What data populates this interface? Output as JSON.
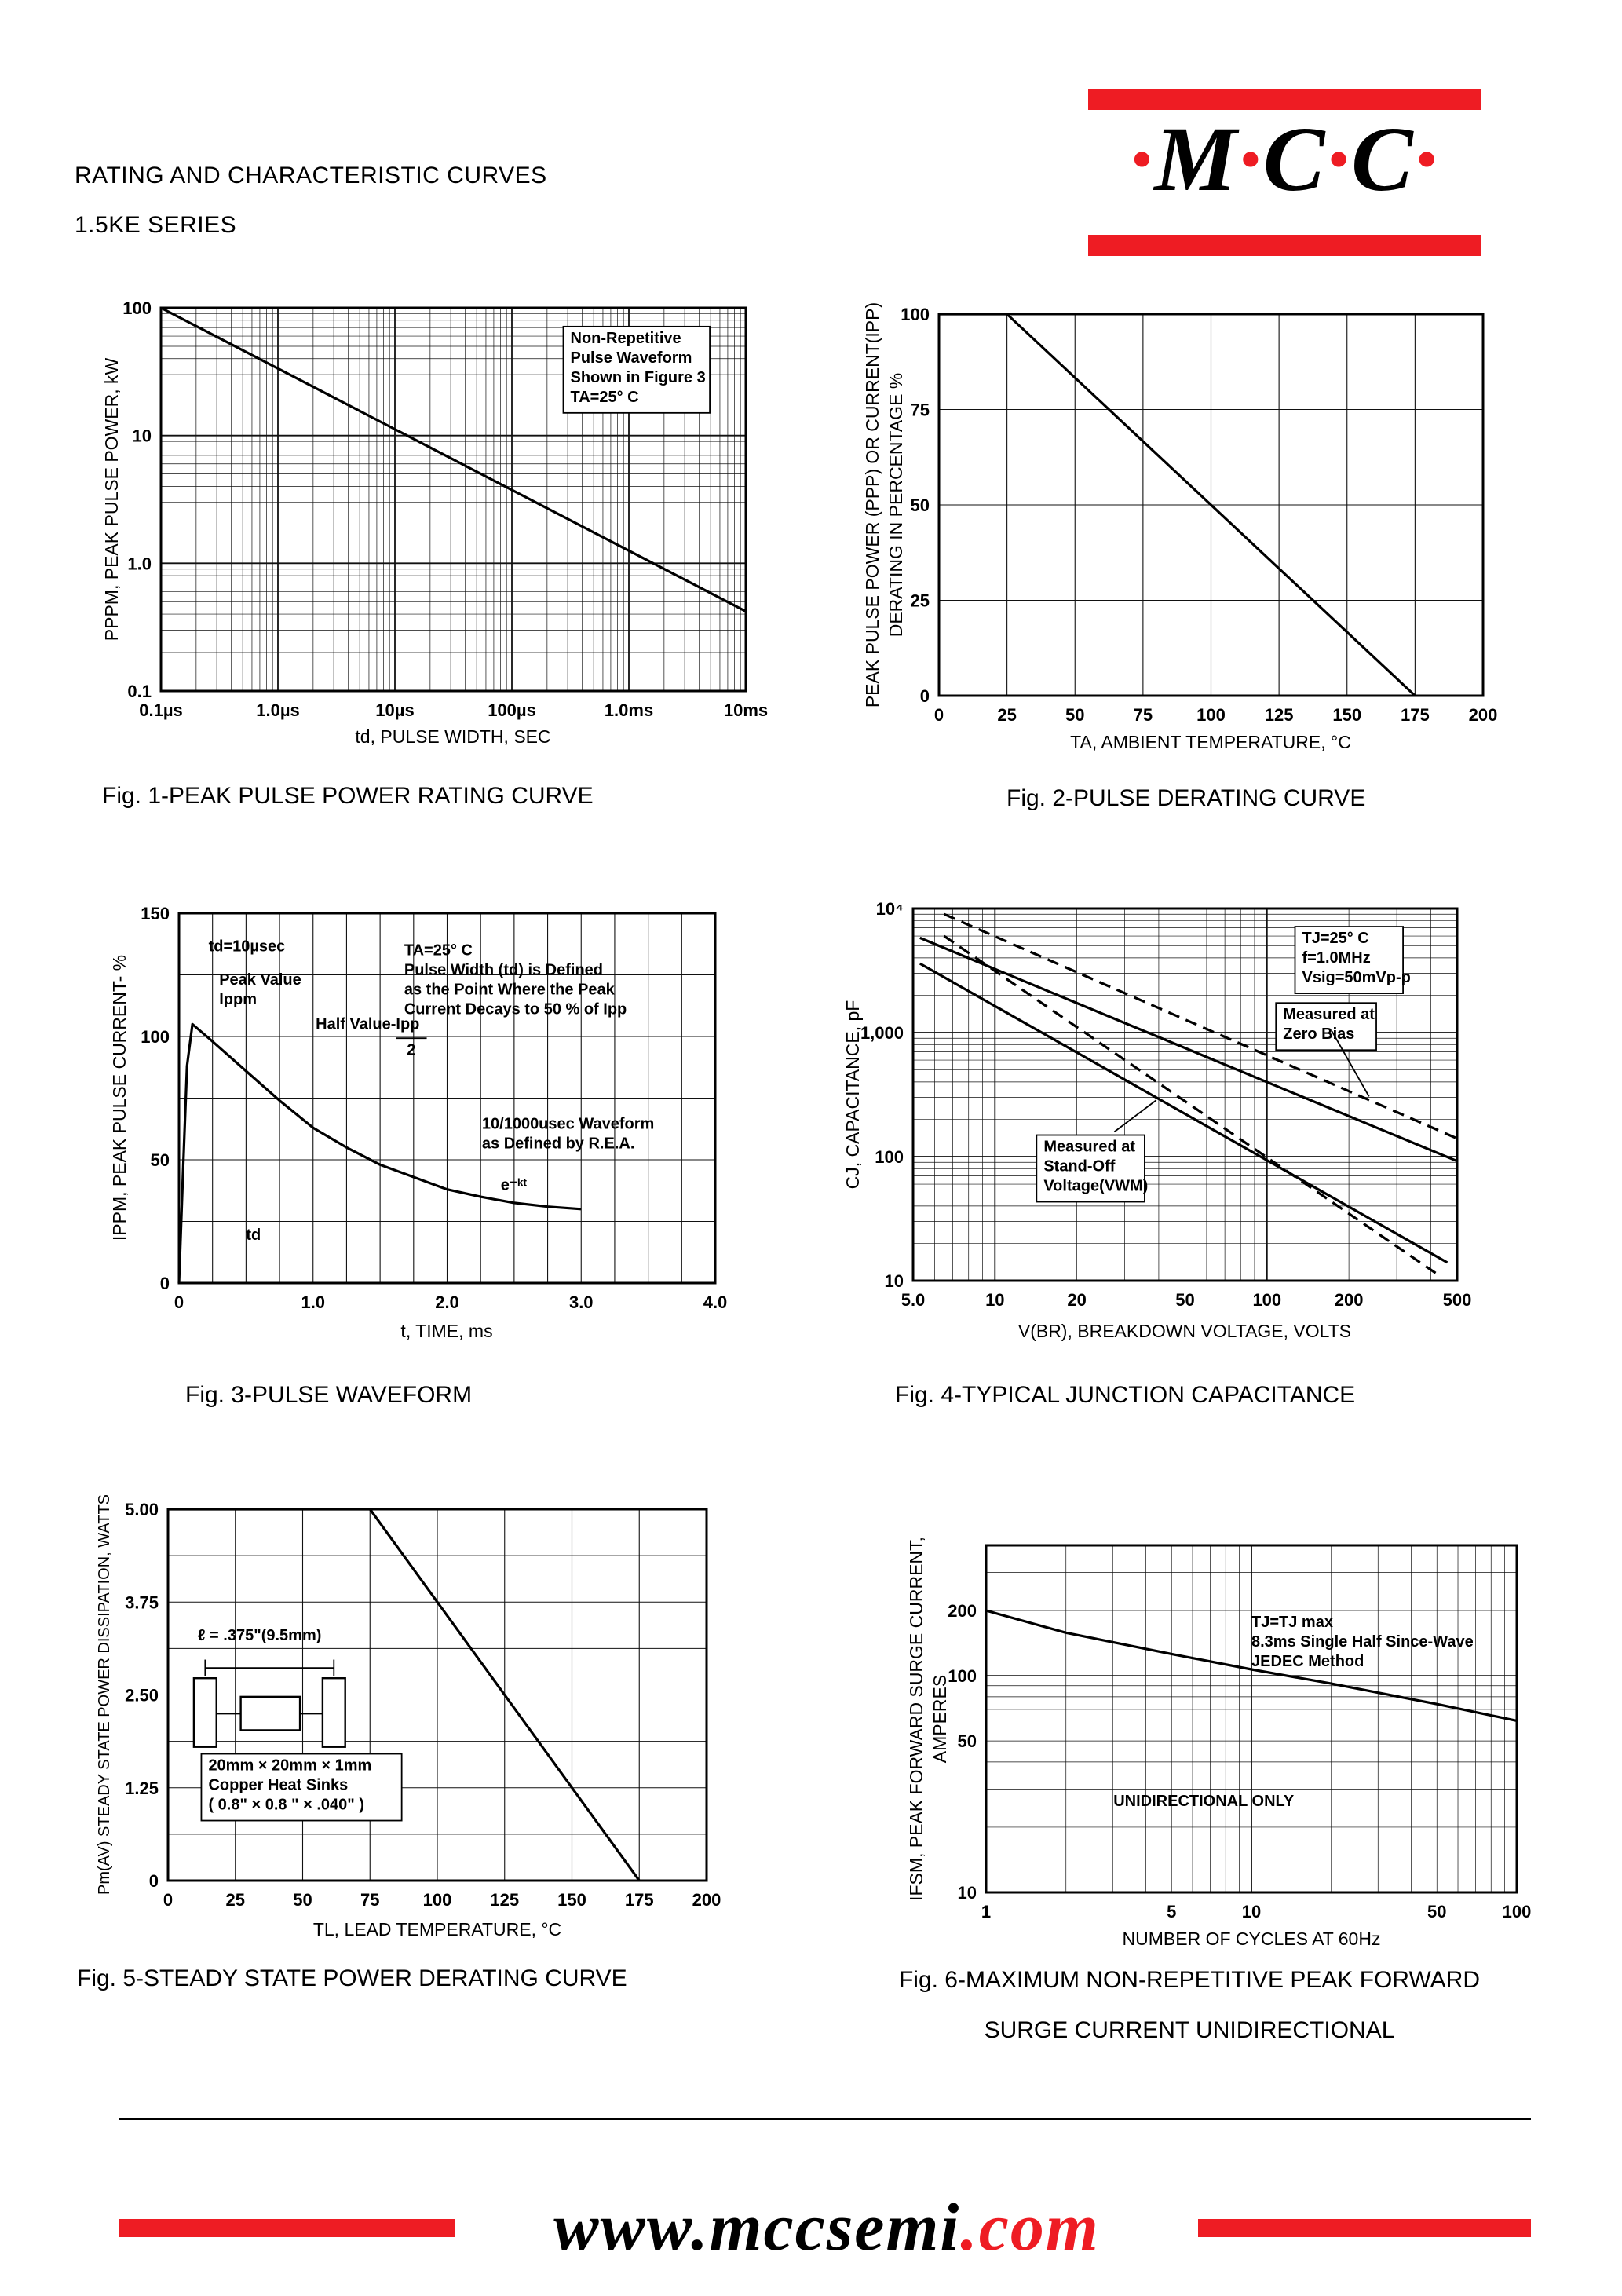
{
  "header": {
    "line1": "RATING AND CHARACTERISTIC CURVES",
    "line2": "1.5KE SERIES"
  },
  "logo": {
    "segments": [
      "·",
      "M",
      "·",
      "C",
      "·",
      "C",
      "·"
    ]
  },
  "footer": {
    "www": "www.",
    "domain": "mccsemi",
    "tld": ".com"
  },
  "colors": {
    "brand_red": "#ee1c23",
    "ink": "#000000"
  },
  "chart_data": [
    {
      "caption": "Fig. 1-PEAK PULSE POWER RATING CURVE",
      "type": "line",
      "x": {
        "scale": "log",
        "min": 1e-07,
        "max": 0.01,
        "label": "td, PULSE WIDTH, SEC",
        "ticks": [
          {
            "v": 1e-07,
            "t": "0.1µs"
          },
          {
            "v": 1e-06,
            "t": "1.0µs"
          },
          {
            "v": 1e-05,
            "t": "10µs"
          },
          {
            "v": 0.0001,
            "t": "100µs"
          },
          {
            "v": 0.001,
            "t": "1.0ms"
          },
          {
            "v": 0.01,
            "t": "10ms"
          }
        ]
      },
      "y": {
        "scale": "log",
        "min": 0.1,
        "max": 100,
        "label": "PPPM, PEAK PULSE POWER, kW",
        "ticks": [
          {
            "v": 100,
            "t": "100"
          },
          {
            "v": 10,
            "t": "10"
          },
          {
            "v": 1,
            "t": "1.0"
          },
          {
            "v": 0.1,
            "t": "0.1"
          }
        ]
      },
      "series": [
        {
          "name": "peak-pulse-power-rating",
          "points": [
            [
              1e-07,
              100
            ],
            [
              0.01,
              0.42
            ]
          ]
        }
      ],
      "annotations": [
        {
          "fx": 0.7,
          "fy": 0.055,
          "box": true,
          "lines": [
            "Non-Repetitive",
            "Pulse Waveform",
            "Shown in Figure 3",
            "TA=25° C"
          ]
        }
      ]
    },
    {
      "caption": "Fig. 2-PULSE DERATING CURVE",
      "type": "line",
      "x": {
        "scale": "linear",
        "min": 0,
        "max": 200,
        "step": 25,
        "label": "TA, AMBIENT TEMPERATURE, °C",
        "ticks": [
          {
            "v": 0,
            "t": "0"
          },
          {
            "v": 25,
            "t": "25"
          },
          {
            "v": 50,
            "t": "50"
          },
          {
            "v": 75,
            "t": "75"
          },
          {
            "v": 100,
            "t": "100"
          },
          {
            "v": 125,
            "t": "125"
          },
          {
            "v": 150,
            "t": "150"
          },
          {
            "v": 175,
            "t": "175"
          },
          {
            "v": 200,
            "t": "200"
          }
        ]
      },
      "y": {
        "scale": "linear",
        "min": 0,
        "max": 100,
        "step": 25,
        "label": "PEAK PULSE POWER (PPP) OR CURRENT(IPP)",
        "label2": "DERATING IN PERCENTAGE %",
        "ticks": [
          {
            "v": 100,
            "t": "100"
          },
          {
            "v": 75,
            "t": "75"
          },
          {
            "v": 50,
            "t": "50"
          },
          {
            "v": 25,
            "t": "25"
          },
          {
            "v": 0,
            "t": "0"
          }
        ]
      },
      "series": [
        {
          "name": "pulse-derating",
          "points": [
            [
              0,
              100
            ],
            [
              25,
              100
            ],
            [
              175,
              0
            ]
          ]
        }
      ],
      "annotations": []
    },
    {
      "caption": "Fig. 3-PULSE WAVEFORM",
      "type": "line",
      "x": {
        "scale": "linear",
        "min": 0,
        "max": 4,
        "step": 0.25,
        "label": "t, TIME, ms",
        "ticks": [
          {
            "v": 0,
            "t": "0"
          },
          {
            "v": 1,
            "t": "1.0"
          },
          {
            "v": 2,
            "t": "2.0"
          },
          {
            "v": 3,
            "t": "3.0"
          },
          {
            "v": 4,
            "t": "4.0"
          }
        ]
      },
      "y": {
        "scale": "linear",
        "min": 0,
        "max": 150,
        "step": 25,
        "label": "IPPM, PEAK PULSE CURRENT- %",
        "ticks": [
          {
            "v": 150,
            "t": "150"
          },
          {
            "v": 100,
            "t": "100"
          },
          {
            "v": 50,
            "t": "50"
          },
          {
            "v": 0,
            "t": "0"
          }
        ]
      },
      "series": [
        {
          "name": "pulse-waveform",
          "points": [
            [
              0,
              0
            ],
            [
              0.03,
              45
            ],
            [
              0.06,
              88
            ],
            [
              0.1,
              105
            ],
            [
              0.25,
              98
            ],
            [
              0.5,
              86
            ],
            [
              0.75,
              74
            ],
            [
              1,
              63
            ],
            [
              1.25,
              55
            ],
            [
              1.5,
              48
            ],
            [
              1.75,
              43
            ],
            [
              2,
              38
            ],
            [
              2.25,
              35
            ],
            [
              2.5,
              32.5
            ],
            [
              2.75,
              31
            ],
            [
              3,
              30
            ]
          ]
        }
      ],
      "annotations": [
        {
          "fx": 0.055,
          "fy": 0.065,
          "lines": [
            "td=10µsec"
          ]
        },
        {
          "fx": 0.075,
          "fy": 0.155,
          "lines": [
            "Peak Value",
            "Ippm"
          ]
        },
        {
          "fx": 0.255,
          "fy": 0.275,
          "lines": [
            "Half Value-Ipp"
          ],
          "arrow": [
            0.405,
            0.338,
            0.462,
            0.338
          ]
        },
        {
          "fx": 0.425,
          "fy": 0.345,
          "lines": [
            "2"
          ]
        },
        {
          "fx": 0.42,
          "fy": 0.075,
          "lines": [
            "TA=25° C",
            "Pulse Width (td) is Defined",
            "as the Point Where the Peak",
            "Current Decays to 50 % of Ipp"
          ]
        },
        {
          "fx": 0.565,
          "fy": 0.545,
          "lines": [
            "10/1000usec Waveform",
            "as Defined by R.E.A."
          ]
        },
        {
          "fx": 0.6,
          "fy": 0.71,
          "lines": [
            "e⁻ᵏᵗ"
          ]
        },
        {
          "fx": 0.125,
          "fy": 0.845,
          "lines": [
            "td"
          ]
        }
      ]
    },
    {
      "caption": "Fig. 4-TYPICAL JUNCTION CAPACITANCE",
      "type": "line",
      "x": {
        "scale": "log",
        "min": 5,
        "max": 500,
        "label": "V(BR), BREAKDOWN VOLTAGE, VOLTS",
        "ticks": [
          {
            "v": 5,
            "t": "5.0"
          },
          {
            "v": 10,
            "t": "10"
          },
          {
            "v": 20,
            "t": "20"
          },
          {
            "v": 50,
            "t": "50"
          },
          {
            "v": 100,
            "t": "100"
          },
          {
            "v": 200,
            "t": "200"
          },
          {
            "v": 500,
            "t": "500"
          }
        ]
      },
      "y": {
        "scale": "log",
        "min": 10,
        "max": 10000,
        "label": "CJ, CAPACITANCE, pF",
        "ticks": [
          {
            "v": 10000,
            "t": "10⁴"
          },
          {
            "v": 1000,
            "t": "1,000"
          },
          {
            "v": 100,
            "t": "100"
          },
          {
            "v": 10,
            "t": "10"
          }
        ]
      },
      "series": [
        {
          "name": "zero-bias-dashed",
          "dash": true,
          "points": [
            [
              6.5,
              9000
            ],
            [
              500,
              140
            ]
          ]
        },
        {
          "name": "zero-bias-solid",
          "points": [
            [
              5.3,
              5800
            ],
            [
              500,
              92
            ]
          ]
        },
        {
          "name": "standoff-dashed",
          "dash": true,
          "points": [
            [
              6.5,
              6000
            ],
            [
              430,
              11
            ]
          ]
        },
        {
          "name": "standoff-solid",
          "points": [
            [
              5.3,
              3600
            ],
            [
              460,
              14
            ]
          ]
        }
      ],
      "annotations": [
        {
          "fx": 0.715,
          "fy": 0.055,
          "box": true,
          "lines": [
            "TJ=25° C",
            "f=1.0MHz",
            "Vsig=50mVp-p"
          ]
        },
        {
          "fx": 0.68,
          "fy": 0.26,
          "box": true,
          "lines": [
            "Measured at",
            "Zero Bias"
          ],
          "arrow": [
            0.77,
            0.33,
            0.838,
            0.505
          ]
        },
        {
          "fx": 0.24,
          "fy": 0.615,
          "box": true,
          "lines": [
            "Measured at",
            "Stand-Off",
            "Voltage(VWM)"
          ],
          "arrow": [
            0.37,
            0.6,
            0.447,
            0.515
          ]
        }
      ]
    },
    {
      "caption": "Fig. 5-STEADY STATE POWER DERATING CURVE",
      "type": "line",
      "inset": "heatsink",
      "x": {
        "scale": "linear",
        "min": 0,
        "max": 200,
        "step": 25,
        "label": "TL, LEAD TEMPERATURE, °C",
        "ticks": [
          {
            "v": 0,
            "t": "0"
          },
          {
            "v": 25,
            "t": "25"
          },
          {
            "v": 50,
            "t": "50"
          },
          {
            "v": 75,
            "t": "75"
          },
          {
            "v": 100,
            "t": "100"
          },
          {
            "v": 125,
            "t": "125"
          },
          {
            "v": 150,
            "t": "150"
          },
          {
            "v": 175,
            "t": "175"
          },
          {
            "v": 200,
            "t": "200"
          }
        ]
      },
      "y": {
        "scale": "linear",
        "min": 0,
        "max": 5,
        "step": 0.625,
        "label": "Pm(AV) STEADY STATE POWER DISSIPATION, WATTS",
        "ticks": [
          {
            "v": 5,
            "t": "5.00"
          },
          {
            "v": 3.75,
            "t": "3.75"
          },
          {
            "v": 2.5,
            "t": "2.50"
          },
          {
            "v": 1.25,
            "t": "1.25"
          },
          {
            "v": 0,
            "t": "0"
          }
        ]
      },
      "series": [
        {
          "name": "steady-state-derating",
          "points": [
            [
              0,
              5
            ],
            [
              75,
              5
            ],
            [
              175,
              0
            ]
          ]
        }
      ],
      "annotations": [
        {
          "fx": 0.055,
          "fy": 0.315,
          "lines": [
            "ℓ = .375\"(9.5mm)"
          ]
        },
        {
          "fx": 0.075,
          "fy": 0.665,
          "box": true,
          "lines": [
            "20mm × 20mm × 1mm",
            "Copper Heat Sinks",
            "( 0.8\" × 0.8 \" × .040\" )"
          ]
        }
      ]
    },
    {
      "caption_line1": "Fig. 6-MAXIMUM NON-REPETITIVE PEAK FORWARD",
      "caption_line2": "SURGE CURRENT UNIDIRECTIONAL",
      "type": "line",
      "x": {
        "scale": "log",
        "min": 1,
        "max": 100,
        "label": "NUMBER OF CYCLES AT 60Hz",
        "ticks": [
          {
            "v": 1,
            "t": "1"
          },
          {
            "v": 5,
            "t": "5"
          },
          {
            "v": 10,
            "t": "10"
          },
          {
            "v": 50,
            "t": "50"
          },
          {
            "v": 100,
            "t": "100"
          }
        ]
      },
      "y": {
        "scale": "log",
        "min": 10,
        "max": 400,
        "label": "IFSM, PEAK FORWARD SURGE CURRENT,",
        "label2": "AMPERES",
        "ticks": [
          {
            "v": 200,
            "t": "200"
          },
          {
            "v": 100,
            "t": "100"
          },
          {
            "v": 50,
            "t": "50"
          },
          {
            "v": 10,
            "t": "10"
          }
        ]
      },
      "series": [
        {
          "name": "surge-current",
          "points": [
            [
              1,
              200
            ],
            [
              2,
              158
            ],
            [
              5,
              126
            ],
            [
              10,
              107
            ],
            [
              20,
              92
            ],
            [
              50,
              74
            ],
            [
              100,
              62
            ]
          ]
        }
      ],
      "annotations": [
        {
          "fx": 0.5,
          "fy": 0.195,
          "lines": [
            "TJ=TJ max",
            "8.3ms Single Half Since-Wave",
            "JEDEC Method"
          ]
        },
        {
          "fx": 0.24,
          "fy": 0.71,
          "lines": [
            "UNIDIRECTIONAL ONLY"
          ]
        }
      ]
    }
  ]
}
